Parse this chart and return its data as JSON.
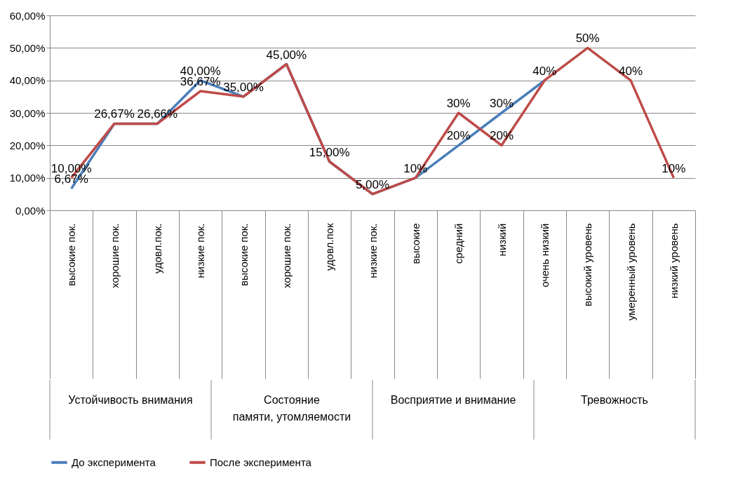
{
  "chart_data": {
    "type": "line",
    "categories": [
      "высокие пок.",
      "хорошие пок.",
      "удовл.пок.",
      "низкие пок.",
      "высокие пок.",
      "хорошие пок.",
      "удовл.пок",
      "низкие пок.",
      "высокие",
      "средний",
      "низкий",
      "очень низкий",
      "высокий уровень",
      "умеренный уровень",
      "низкий уровень"
    ],
    "series": [
      {
        "name": "До эксперимента",
        "color": "#4a7ebb",
        "values": [
          6.67,
          26.67,
          26.66,
          40,
          35,
          45,
          15,
          5,
          10,
          20,
          30,
          40,
          null,
          null,
          null
        ],
        "value_labels": [
          "6,67%",
          null,
          null,
          "40,00%",
          null,
          null,
          null,
          null,
          null,
          "20%",
          "30%",
          null,
          null,
          null,
          null
        ]
      },
      {
        "name": "После эксперимента",
        "color": "#be4b48",
        "values": [
          10,
          26.67,
          26.66,
          36.67,
          35,
          45,
          15,
          5,
          10,
          30,
          20,
          40,
          50,
          40,
          10
        ],
        "value_labels": [
          "10,00%",
          "26,67%",
          "26,66%",
          "36,67%",
          "35,00%",
          "45,00%",
          "15,00%",
          "5,00%",
          "10%",
          "30%",
          "20%",
          "40%",
          "50%",
          "40%",
          "10%"
        ]
      }
    ],
    "ylim": [
      0,
      60
    ],
    "yticks": [
      {
        "value": 0,
        "label": "0,00%"
      },
      {
        "value": 10,
        "label": "10,00%"
      },
      {
        "value": 20,
        "label": "20,00%"
      },
      {
        "value": 30,
        "label": "30,00%"
      },
      {
        "value": 40,
        "label": "40,00%"
      },
      {
        "value": 50,
        "label": "50,00%"
      },
      {
        "value": 60,
        "label": "60,00%"
      }
    ],
    "grid": "y",
    "legend": "bottom",
    "marker": "none",
    "line_style": "solid",
    "annotations": [
      "Устойчивость внимания",
      "Состояние\nпамяти, утомляемости",
      "Восприятие и внимание",
      "Тревожность"
    ]
  }
}
